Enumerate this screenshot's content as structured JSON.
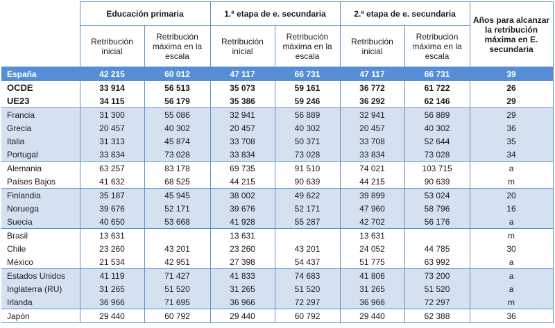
{
  "header": {
    "groups": [
      "Educación primaria",
      "1.ª etapa de e. secundaria",
      "2.ª etapa de e. secundaria"
    ],
    "sub_initial": "Retribución inicial",
    "sub_max": "Retribución máxima en la escala",
    "years": "Años para alcanzar la retribución máxima en E. secundaria"
  },
  "rows": [
    {
      "name": "España",
      "style": "spain",
      "p_ini": "42 215",
      "p_max": "60 012",
      "s1_ini": "47 117",
      "s1_max": "66 731",
      "s2_ini": "47 117",
      "s2_max": "66 731",
      "years": "39"
    },
    {
      "name": "OCDE",
      "style": "avg",
      "p_ini": "33 914",
      "p_max": "56 513",
      "s1_ini": "35 073",
      "s1_max": "59 161",
      "s2_ini": "36 772",
      "s2_max": "61 722",
      "years": "26"
    },
    {
      "name": "UE23",
      "style": "avg",
      "p_ini": "34 115",
      "p_max": "56 179",
      "s1_ini": "35 386",
      "s1_max": "59 246",
      "s2_ini": "36 292",
      "s2_max": "62 146",
      "years": "29"
    },
    {
      "name": "Francia",
      "style": "blue",
      "p_ini": "31 300",
      "p_max": "55 086",
      "s1_ini": "32 941",
      "s1_max": "56 889",
      "s2_ini": "32 941",
      "s2_max": "56 889",
      "years": "29"
    },
    {
      "name": "Grecia",
      "style": "blue",
      "p_ini": "20 457",
      "p_max": "40 302",
      "s1_ini": "20 457",
      "s1_max": "40 302",
      "s2_ini": "20 457",
      "s2_max": "40 302",
      "years": "36"
    },
    {
      "name": "Italia",
      "style": "blue",
      "p_ini": "31 313",
      "p_max": "45 874",
      "s1_ini": "33 708",
      "s1_max": "50 371",
      "s2_ini": "33 708",
      "s2_max": "52 644",
      "years": "35"
    },
    {
      "name": "Portugal",
      "style": "blue",
      "p_ini": "33 834",
      "p_max": "73 028",
      "s1_ini": "33 834",
      "s1_max": "73 028",
      "s2_ini": "33 834",
      "s2_max": "73 028",
      "years": "34"
    },
    {
      "name": "Alemania",
      "style": "white",
      "p_ini": "63 257",
      "p_max": "83 178",
      "s1_ini": "69 735",
      "s1_max": "91 510",
      "s2_ini": "74 021",
      "s2_max": "103 715",
      "years": "a"
    },
    {
      "name": "Países Bajos",
      "style": "white",
      "p_ini": "41 632",
      "p_max": "68 525",
      "s1_ini": "44 215",
      "s1_max": "90 639",
      "s2_ini": "44 215",
      "s2_max": "90 639",
      "years": "m"
    },
    {
      "name": "Finlandia",
      "style": "blue",
      "p_ini": "35 187",
      "p_max": "45 945",
      "s1_ini": "38 002",
      "s1_max": "49 622",
      "s2_ini": "39 899",
      "s2_max": "53 024",
      "years": "20"
    },
    {
      "name": "Noruega",
      "style": "blue",
      "p_ini": "39 676",
      "p_max": "52 171",
      "s1_ini": "39 676",
      "s1_max": "52 171",
      "s2_ini": "47 960",
      "s2_max": "58 796",
      "years": "16"
    },
    {
      "name": "Suecia",
      "style": "blue",
      "p_ini": "40 650",
      "p_max": "53 668",
      "s1_ini": "41 928",
      "s1_max": "55 287",
      "s2_ini": "42 702",
      "s2_max": "56 176",
      "years": "a"
    },
    {
      "name": "Brasil",
      "style": "white",
      "p_ini": "13 631",
      "p_max": "",
      "s1_ini": "13 631",
      "s1_max": "",
      "s2_ini": "13 631",
      "s2_max": "",
      "years": "m"
    },
    {
      "name": "Chile",
      "style": "white",
      "p_ini": "23 260",
      "p_max": "43 201",
      "s1_ini": "23 260",
      "s1_max": "43 201",
      "s2_ini": "24 052",
      "s2_max": "44 785",
      "years": "30"
    },
    {
      "name": "México",
      "style": "white",
      "p_ini": "21 534",
      "p_max": "42 951",
      "s1_ini": "27 398",
      "s1_max": "54 437",
      "s2_ini": "51 775",
      "s2_max": "63 992",
      "years": "a"
    },
    {
      "name": "Estados Unidos",
      "style": "blue",
      "p_ini": "41 119",
      "p_max": "71 427",
      "s1_ini": "41 833",
      "s1_max": "74 683",
      "s2_ini": "41 806",
      "s2_max": "73 200",
      "years": "a"
    },
    {
      "name": "Inglaterra (RU)",
      "style": "blue",
      "p_ini": "31 265",
      "p_max": "51 520",
      "s1_ini": "31 265",
      "s1_max": "51 520",
      "s2_ini": "31 265",
      "s2_max": "51 520",
      "years": "a"
    },
    {
      "name": "Irlanda",
      "style": "blue",
      "p_ini": "36 966",
      "p_max": "71 695",
      "s1_ini": "36 966",
      "s1_max": "72 297",
      "s2_ini": "36 966",
      "s2_max": "72 297",
      "years": "m"
    },
    {
      "name": "Japón",
      "style": "white",
      "p_ini": "29 440",
      "p_max": "60 792",
      "s1_ini": "29 440",
      "s1_max": "60 792",
      "s2_ini": "29 440",
      "s2_max": "62 388",
      "years": "36"
    }
  ],
  "colors": {
    "header_border": "#5b8fc7",
    "spain_row": "#558ed5",
    "band": "#d4e1f1"
  }
}
